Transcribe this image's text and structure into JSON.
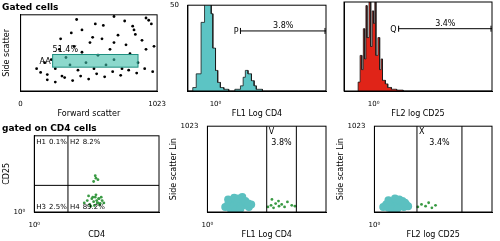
{
  "chart_data": [
    {
      "type": "scatter",
      "title": "Gated cells",
      "x_label": "Forward scatter",
      "y_label": "Side scatter",
      "xlim": [
        0,
        1023
      ],
      "ylim": [
        0,
        1023
      ],
      "xticks": [
        0,
        1023
      ],
      "tick_labels": "x",
      "series": [
        {
          "color": "#000000",
          "marker": "dot",
          "x": [
            120,
            150,
            180,
            200,
            230,
            260,
            290,
            310,
            340,
            370,
            400,
            430,
            460,
            490,
            520,
            550,
            580,
            610,
            640,
            670,
            700,
            730,
            760,
            790,
            820,
            850,
            880,
            910,
            940,
            980,
            200,
            260,
            330,
            390,
            450,
            510,
            570,
            630,
            690,
            750,
            810,
            870,
            930,
            990,
            300,
            380,
            460,
            540,
            620,
            700,
            780,
            860,
            940,
            1000,
            420,
            560,
            700,
            840,
            960
          ],
          "y": [
            300,
            250,
            380,
            220,
            420,
            300,
            560,
            200,
            450,
            350,
            600,
            280,
            520,
            380,
            650,
            300,
            480,
            700,
            350,
            560,
            420,
            750,
            300,
            620,
            500,
            820,
            380,
            680,
            560,
            900,
            150,
            120,
            180,
            140,
            200,
            160,
            230,
            190,
            260,
            210,
            280,
            240,
            300,
            260,
            700,
            780,
            820,
            720,
            880,
            650,
            940,
            760,
            980,
            600,
            960,
            900,
            1000,
            870,
            950
          ]
        }
      ],
      "gate": {
        "name": "AA",
        "label": "51.4%",
        "x": [
          240,
          880
        ],
        "y": [
          320,
          490
        ]
      }
    },
    {
      "type": "histogram",
      "x_label": "FL1 Log CD4",
      "log": "x",
      "xlim": [
        0.1,
        10000
      ],
      "ylim": [
        0,
        50
      ],
      "xticks": [
        {
          "value": 1,
          "label": "10⁰"
        }
      ],
      "yticks": [
        50
      ],
      "bins": [
        0.1,
        0.15,
        0.2,
        0.3,
        0.4,
        0.5,
        0.6,
        0.7,
        0.8,
        1.0,
        1.2,
        1.5,
        2,
        3,
        5,
        8,
        10,
        12,
        15,
        20,
        25,
        30,
        50,
        100,
        1000,
        10000
      ],
      "counts": [
        0,
        2,
        10,
        40,
        65,
        70,
        60,
        45,
        25,
        12,
        5,
        2,
        1,
        0,
        1,
        3,
        8,
        12,
        10,
        6,
        3,
        1,
        0,
        0,
        0
      ],
      "color": "#5cc4c4",
      "gate": {
        "name": "P",
        "label": "3.8%",
        "x": [
          8,
          10000
        ],
        "level": 35
      }
    },
    {
      "type": "histogram",
      "x_label": "FL2 log CD25",
      "log": "x",
      "xlim": [
        0.1,
        10000
      ],
      "ylim": [
        0,
        50
      ],
      "xticks": [
        {
          "value": 1,
          "label": "10⁰"
        }
      ],
      "tick_labels": "x",
      "bins": [
        0.3,
        0.35,
        0.4,
        0.45,
        0.5,
        0.55,
        0.6,
        0.7,
        0.8,
        0.9,
        1.0,
        1.1,
        1.2,
        1.4,
        1.6,
        1.8,
        2,
        2.5,
        3,
        4,
        6,
        10,
        100,
        10000
      ],
      "counts": [
        5,
        20,
        12,
        35,
        18,
        48,
        30,
        55,
        25,
        45,
        38,
        52,
        20,
        30,
        12,
        18,
        6,
        4,
        2,
        1,
        0.5,
        0,
        0
      ],
      "color": "#e02418",
      "gate": {
        "name": "Q",
        "label": "3.4%",
        "x": [
          7,
          10000
        ],
        "level": 35
      }
    },
    {
      "type": "scatter",
      "title": "gated on CD4 cells",
      "x_label": "CD4",
      "y_label": "CD25",
      "log": true,
      "xlim": [
        1,
        10000
      ],
      "ylim": [
        1,
        10000
      ],
      "xticks": [
        {
          "value": 1,
          "label": "10⁰"
        }
      ],
      "yticks": [
        {
          "value": 1,
          "label": "10⁰"
        }
      ],
      "series": [
        {
          "color": "#3a9a44",
          "marker": "dot",
          "x": [
            40,
            50,
            60,
            70,
            80,
            90,
            100,
            110,
            120,
            130,
            150,
            170,
            55,
            75,
            95,
            115,
            140,
            65,
            85,
            105,
            125,
            80,
            95,
            110,
            90
          ],
          "y": [
            3,
            4,
            2.5,
            5,
            3.5,
            6,
            4,
            3,
            5,
            2.8,
            4,
            3,
            7,
            6,
            8,
            5,
            6,
            2,
            2.2,
            3,
            2.4,
            40,
            60,
            50,
            80
          ]
        }
      ],
      "quadrants": {
        "x": 12,
        "y": 25,
        "cells": [
          {
            "name": "H1",
            "label": "0.1%"
          },
          {
            "name": "H2",
            "label": "8.2%"
          },
          {
            "name": "H3",
            "label": "2.5%"
          },
          {
            "name": "H4",
            "label": "89.2%"
          }
        ]
      }
    },
    {
      "type": "scatter",
      "x_label": "FL1 Log CD4",
      "y_label": "Side scatter Lin",
      "log": "x",
      "xlim": [
        1,
        10000
      ],
      "ylim": [
        0,
        1023
      ],
      "xticks": [
        {
          "value": 1,
          "label": "10⁰"
        }
      ],
      "yticks": [
        1023
      ],
      "series": [
        {
          "color": "#5bc0c0",
          "marker": "circle",
          "x": [
            4,
            5,
            6,
            7,
            8,
            10,
            12,
            14,
            16,
            20,
            25,
            30,
            5,
            8,
            11,
            15,
            19,
            24,
            9,
            13
          ],
          "y": [
            60,
            90,
            40,
            120,
            70,
            100,
            50,
            140,
            80,
            110,
            60,
            90,
            150,
            170,
            160,
            180,
            130,
            100,
            30,
            40
          ]
        },
        {
          "color": "#3a9a44",
          "marker": "dot",
          "x": [
            110,
            140,
            170,
            200,
            260,
            320,
            400,
            500,
            700,
            900,
            150,
            250
          ],
          "y": [
            60,
            80,
            50,
            100,
            70,
            90,
            60,
            120,
            80,
            70,
            150,
            130
          ]
        }
      ],
      "gate": {
        "name": "V",
        "label": "3.8%",
        "x": [
          100,
          1000
        ]
      }
    },
    {
      "type": "scatter",
      "x_label": "FL2 log CD25",
      "y_label": "Side scatter Lin",
      "log": "x",
      "xlim": [
        1,
        10000
      ],
      "ylim": [
        0,
        1023
      ],
      "xticks": [
        {
          "value": 1,
          "label": "10⁰"
        }
      ],
      "yticks": [
        1023
      ],
      "series": [
        {
          "color": "#5bc0c0",
          "marker": "circle",
          "x": [
            2,
            2.5,
            3,
            4,
            5,
            6,
            7,
            8,
            10,
            12,
            14,
            3,
            5,
            7,
            9,
            11,
            4,
            6
          ],
          "y": [
            60,
            90,
            50,
            110,
            70,
            120,
            80,
            100,
            60,
            90,
            70,
            140,
            160,
            150,
            130,
            110,
            30,
            40
          ]
        },
        {
          "color": "#3a9a44",
          "marker": "dot",
          "x": [
            30,
            40,
            55,
            70,
            90,
            120
          ],
          "y": [
            60,
            90,
            70,
            110,
            50,
            80
          ]
        }
      ],
      "gate": {
        "name": "X",
        "label": "3.4%",
        "x": [
          28,
          950
        ]
      }
    }
  ]
}
